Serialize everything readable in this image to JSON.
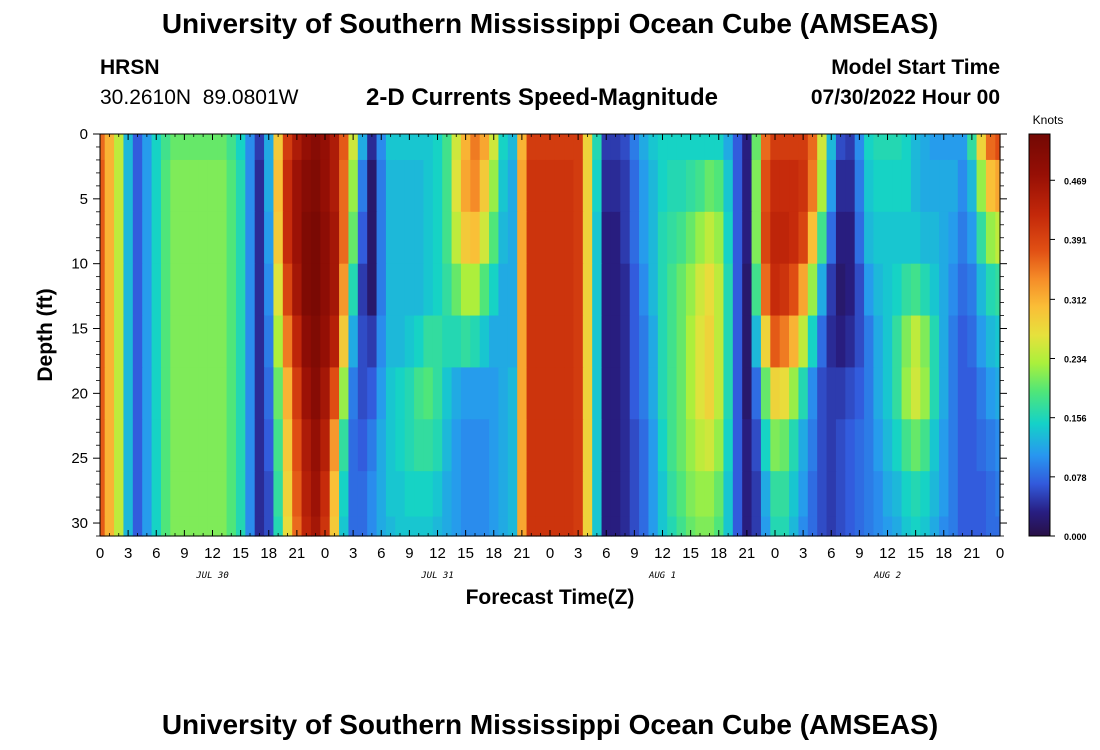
{
  "page": {
    "title": "University of Southern Mississippi Ocean Cube (AMSEAS)",
    "footer_title": "University of Southern Mississippi Ocean Cube (AMSEAS)",
    "station_name": "HRSN",
    "station_coords": "30.2610N  89.0801W",
    "model_start_label": "Model Start Time",
    "model_start_value": "07/30/2022 Hour 00"
  },
  "chart_data": {
    "type": "heatmap",
    "title": "2-D Currents Speed-Magnitude",
    "xlabel": "Forecast Time(Z)",
    "ylabel": "Depth (ft)",
    "x_range_hours": [
      0,
      96
    ],
    "ylim": [
      0,
      31
    ],
    "y_inverted": true,
    "x_tick_step_hours": 3,
    "x_tick_labels": [
      "0",
      "3",
      "6",
      "9",
      "12",
      "15",
      "18",
      "21",
      "0",
      "3",
      "6",
      "9",
      "12",
      "15",
      "18",
      "21",
      "0",
      "3",
      "6",
      "9",
      "12",
      "15",
      "18",
      "21",
      "0",
      "3",
      "6",
      "9",
      "12",
      "15",
      "18",
      "21",
      "0"
    ],
    "date_labels": [
      {
        "label": "JUL 30",
        "hour": 12
      },
      {
        "label": "JUL 31",
        "hour": 36
      },
      {
        "label": "AUG 1",
        "hour": 60
      },
      {
        "label": "AUG 2",
        "hour": 84
      }
    ],
    "y_ticks": [
      0,
      5,
      10,
      15,
      20,
      25,
      30
    ],
    "colorbar": {
      "unit": "Knots",
      "min": 0.0,
      "max": 0.53,
      "ticks": [
        "0.000",
        "0.078",
        "0.156",
        "0.234",
        "0.312",
        "0.391",
        "0.469"
      ],
      "tick_values": [
        0.0,
        0.078,
        0.156,
        0.234,
        0.312,
        0.391,
        0.469
      ]
    },
    "depth_levels_ft": [
      0,
      4,
      8,
      12,
      16,
      20,
      24,
      28,
      31
    ],
    "time_hours": [
      0,
      1,
      2,
      3,
      4,
      5,
      6,
      7,
      8,
      9,
      10,
      11,
      12,
      13,
      14,
      15,
      16,
      17,
      18,
      19,
      20,
      21,
      22,
      23,
      24,
      25,
      26,
      27,
      28,
      29,
      30,
      31,
      32,
      33,
      34,
      35,
      36,
      37,
      38,
      39,
      40,
      41,
      42,
      43,
      44,
      45,
      46,
      47,
      48,
      49,
      50,
      51,
      52,
      53,
      54,
      55,
      56,
      57,
      58,
      59,
      60,
      61,
      62,
      63,
      64,
      65,
      66,
      67,
      68,
      69,
      70,
      71,
      72,
      73,
      74,
      75,
      76,
      77,
      78,
      79,
      80,
      81,
      82,
      83,
      84,
      85,
      86,
      87,
      88,
      89,
      90,
      91,
      92,
      93,
      94,
      95,
      96
    ],
    "speed_knots_by_depth": [
      [
        0.36,
        0.31,
        0.24,
        0.13,
        0.07,
        0.11,
        0.15,
        0.18,
        0.2,
        0.2,
        0.2,
        0.2,
        0.2,
        0.2,
        0.18,
        0.15,
        0.1,
        0.05,
        0.12,
        0.29,
        0.4,
        0.45,
        0.48,
        0.5,
        0.48,
        0.45,
        0.37,
        0.25,
        0.12,
        0.04,
        0.1,
        0.14,
        0.14,
        0.14,
        0.14,
        0.14,
        0.15,
        0.18,
        0.25,
        0.31,
        0.35,
        0.32,
        0.25,
        0.15,
        0.13,
        0.31,
        0.4,
        0.4,
        0.4,
        0.4,
        0.4,
        0.4,
        0.28,
        0.16,
        0.05,
        0.05,
        0.06,
        0.09,
        0.12,
        0.14,
        0.15,
        0.15,
        0.15,
        0.15,
        0.15,
        0.15,
        0.15,
        0.12,
        0.07,
        0.03,
        0.2,
        0.36,
        0.4,
        0.4,
        0.4,
        0.4,
        0.36,
        0.25,
        0.13,
        0.06,
        0.05,
        0.1,
        0.15,
        0.16,
        0.16,
        0.16,
        0.15,
        0.13,
        0.12,
        0.11,
        0.11,
        0.11,
        0.11,
        0.17,
        0.28,
        0.36,
        0.38
      ],
      [
        0.37,
        0.31,
        0.24,
        0.13,
        0.07,
        0.11,
        0.15,
        0.19,
        0.21,
        0.21,
        0.21,
        0.21,
        0.21,
        0.21,
        0.19,
        0.16,
        0.1,
        0.04,
        0.12,
        0.3,
        0.42,
        0.47,
        0.5,
        0.51,
        0.48,
        0.45,
        0.36,
        0.22,
        0.09,
        0.02,
        0.09,
        0.13,
        0.13,
        0.13,
        0.13,
        0.14,
        0.15,
        0.18,
        0.26,
        0.32,
        0.34,
        0.29,
        0.22,
        0.14,
        0.12,
        0.32,
        0.41,
        0.41,
        0.41,
        0.41,
        0.41,
        0.4,
        0.28,
        0.15,
        0.04,
        0.04,
        0.05,
        0.08,
        0.11,
        0.13,
        0.15,
        0.16,
        0.16,
        0.17,
        0.18,
        0.2,
        0.19,
        0.14,
        0.07,
        0.03,
        0.21,
        0.38,
        0.42,
        0.42,
        0.42,
        0.41,
        0.35,
        0.23,
        0.11,
        0.04,
        0.04,
        0.09,
        0.14,
        0.15,
        0.15,
        0.15,
        0.15,
        0.13,
        0.12,
        0.12,
        0.12,
        0.12,
        0.1,
        0.13,
        0.22,
        0.3,
        0.32
      ],
      [
        0.37,
        0.31,
        0.24,
        0.13,
        0.07,
        0.11,
        0.15,
        0.19,
        0.21,
        0.21,
        0.21,
        0.21,
        0.21,
        0.21,
        0.19,
        0.16,
        0.1,
        0.04,
        0.11,
        0.29,
        0.42,
        0.47,
        0.51,
        0.52,
        0.49,
        0.46,
        0.36,
        0.2,
        0.07,
        0.02,
        0.09,
        0.13,
        0.13,
        0.13,
        0.13,
        0.14,
        0.15,
        0.18,
        0.24,
        0.29,
        0.3,
        0.25,
        0.19,
        0.13,
        0.12,
        0.32,
        0.41,
        0.41,
        0.41,
        0.41,
        0.41,
        0.4,
        0.28,
        0.14,
        0.03,
        0.03,
        0.05,
        0.08,
        0.11,
        0.13,
        0.16,
        0.17,
        0.18,
        0.2,
        0.22,
        0.24,
        0.22,
        0.15,
        0.07,
        0.03,
        0.21,
        0.39,
        0.43,
        0.43,
        0.42,
        0.39,
        0.3,
        0.18,
        0.08,
        0.03,
        0.03,
        0.08,
        0.13,
        0.14,
        0.14,
        0.14,
        0.14,
        0.14,
        0.13,
        0.13,
        0.12,
        0.11,
        0.09,
        0.11,
        0.17,
        0.22,
        0.24
      ],
      [
        0.37,
        0.31,
        0.24,
        0.13,
        0.07,
        0.11,
        0.15,
        0.19,
        0.21,
        0.21,
        0.21,
        0.21,
        0.21,
        0.21,
        0.19,
        0.16,
        0.1,
        0.04,
        0.1,
        0.26,
        0.39,
        0.46,
        0.51,
        0.52,
        0.49,
        0.46,
        0.33,
        0.16,
        0.05,
        0.02,
        0.09,
        0.13,
        0.13,
        0.13,
        0.13,
        0.14,
        0.15,
        0.17,
        0.2,
        0.23,
        0.23,
        0.19,
        0.15,
        0.12,
        0.12,
        0.32,
        0.41,
        0.41,
        0.41,
        0.41,
        0.41,
        0.4,
        0.28,
        0.14,
        0.03,
        0.03,
        0.04,
        0.07,
        0.1,
        0.13,
        0.16,
        0.18,
        0.2,
        0.22,
        0.25,
        0.27,
        0.24,
        0.16,
        0.07,
        0.02,
        0.18,
        0.36,
        0.42,
        0.41,
        0.38,
        0.32,
        0.22,
        0.12,
        0.05,
        0.02,
        0.03,
        0.06,
        0.11,
        0.13,
        0.14,
        0.15,
        0.17,
        0.18,
        0.16,
        0.14,
        0.12,
        0.1,
        0.08,
        0.09,
        0.13,
        0.16,
        0.17
      ],
      [
        0.37,
        0.31,
        0.24,
        0.13,
        0.07,
        0.11,
        0.15,
        0.19,
        0.21,
        0.21,
        0.21,
        0.21,
        0.21,
        0.21,
        0.19,
        0.16,
        0.1,
        0.04,
        0.09,
        0.23,
        0.35,
        0.43,
        0.49,
        0.51,
        0.48,
        0.44,
        0.29,
        0.12,
        0.06,
        0.05,
        0.1,
        0.13,
        0.13,
        0.14,
        0.15,
        0.17,
        0.17,
        0.16,
        0.16,
        0.17,
        0.16,
        0.14,
        0.12,
        0.12,
        0.12,
        0.32,
        0.41,
        0.41,
        0.41,
        0.41,
        0.41,
        0.4,
        0.28,
        0.14,
        0.03,
        0.03,
        0.04,
        0.07,
        0.09,
        0.12,
        0.16,
        0.18,
        0.2,
        0.23,
        0.26,
        0.28,
        0.24,
        0.16,
        0.07,
        0.02,
        0.13,
        0.28,
        0.37,
        0.35,
        0.31,
        0.24,
        0.15,
        0.08,
        0.04,
        0.03,
        0.04,
        0.06,
        0.09,
        0.12,
        0.14,
        0.17,
        0.21,
        0.24,
        0.21,
        0.16,
        0.12,
        0.09,
        0.07,
        0.08,
        0.11,
        0.13,
        0.14
      ],
      [
        0.37,
        0.31,
        0.24,
        0.13,
        0.07,
        0.11,
        0.15,
        0.19,
        0.21,
        0.21,
        0.21,
        0.21,
        0.21,
        0.21,
        0.19,
        0.16,
        0.1,
        0.04,
        0.08,
        0.2,
        0.31,
        0.4,
        0.47,
        0.5,
        0.46,
        0.38,
        0.22,
        0.09,
        0.06,
        0.07,
        0.11,
        0.14,
        0.15,
        0.16,
        0.18,
        0.19,
        0.17,
        0.14,
        0.12,
        0.11,
        0.11,
        0.11,
        0.11,
        0.12,
        0.13,
        0.32,
        0.41,
        0.41,
        0.41,
        0.41,
        0.41,
        0.4,
        0.28,
        0.14,
        0.03,
        0.03,
        0.04,
        0.07,
        0.09,
        0.12,
        0.16,
        0.18,
        0.2,
        0.23,
        0.26,
        0.28,
        0.24,
        0.16,
        0.07,
        0.02,
        0.08,
        0.2,
        0.28,
        0.27,
        0.22,
        0.16,
        0.1,
        0.06,
        0.05,
        0.05,
        0.06,
        0.07,
        0.09,
        0.12,
        0.14,
        0.17,
        0.22,
        0.25,
        0.22,
        0.16,
        0.12,
        0.09,
        0.07,
        0.07,
        0.09,
        0.11,
        0.12
      ],
      [
        0.37,
        0.31,
        0.24,
        0.13,
        0.07,
        0.11,
        0.15,
        0.19,
        0.21,
        0.21,
        0.21,
        0.21,
        0.21,
        0.21,
        0.19,
        0.16,
        0.1,
        0.04,
        0.07,
        0.18,
        0.29,
        0.38,
        0.45,
        0.48,
        0.44,
        0.33,
        0.17,
        0.08,
        0.07,
        0.09,
        0.12,
        0.14,
        0.15,
        0.16,
        0.17,
        0.17,
        0.16,
        0.13,
        0.11,
        0.1,
        0.1,
        0.1,
        0.11,
        0.12,
        0.13,
        0.32,
        0.41,
        0.41,
        0.41,
        0.41,
        0.41,
        0.4,
        0.28,
        0.14,
        0.03,
        0.03,
        0.04,
        0.06,
        0.08,
        0.11,
        0.15,
        0.18,
        0.2,
        0.22,
        0.24,
        0.25,
        0.22,
        0.15,
        0.07,
        0.03,
        0.06,
        0.15,
        0.21,
        0.2,
        0.16,
        0.12,
        0.09,
        0.06,
        0.05,
        0.06,
        0.07,
        0.08,
        0.09,
        0.11,
        0.13,
        0.15,
        0.18,
        0.2,
        0.18,
        0.14,
        0.11,
        0.09,
        0.07,
        0.07,
        0.08,
        0.09,
        0.1
      ],
      [
        0.37,
        0.31,
        0.24,
        0.13,
        0.07,
        0.11,
        0.15,
        0.19,
        0.21,
        0.21,
        0.21,
        0.21,
        0.21,
        0.21,
        0.19,
        0.16,
        0.1,
        0.04,
        0.06,
        0.17,
        0.28,
        0.37,
        0.44,
        0.47,
        0.42,
        0.3,
        0.15,
        0.08,
        0.08,
        0.1,
        0.12,
        0.14,
        0.14,
        0.15,
        0.15,
        0.15,
        0.14,
        0.12,
        0.11,
        0.1,
        0.1,
        0.1,
        0.11,
        0.12,
        0.13,
        0.32,
        0.41,
        0.41,
        0.41,
        0.41,
        0.41,
        0.4,
        0.28,
        0.14,
        0.03,
        0.03,
        0.04,
        0.06,
        0.08,
        0.11,
        0.14,
        0.17,
        0.19,
        0.21,
        0.22,
        0.22,
        0.2,
        0.14,
        0.07,
        0.03,
        0.05,
        0.12,
        0.17,
        0.17,
        0.14,
        0.11,
        0.08,
        0.06,
        0.05,
        0.06,
        0.07,
        0.08,
        0.09,
        0.1,
        0.12,
        0.13,
        0.15,
        0.16,
        0.15,
        0.13,
        0.11,
        0.09,
        0.07,
        0.07,
        0.07,
        0.08,
        0.09
      ],
      [
        0.37,
        0.31,
        0.24,
        0.13,
        0.07,
        0.11,
        0.15,
        0.19,
        0.21,
        0.21,
        0.21,
        0.21,
        0.21,
        0.21,
        0.19,
        0.16,
        0.1,
        0.04,
        0.06,
        0.16,
        0.27,
        0.36,
        0.43,
        0.46,
        0.41,
        0.29,
        0.14,
        0.08,
        0.08,
        0.1,
        0.12,
        0.13,
        0.14,
        0.14,
        0.14,
        0.14,
        0.13,
        0.12,
        0.11,
        0.1,
        0.1,
        0.1,
        0.11,
        0.12,
        0.13,
        0.32,
        0.41,
        0.41,
        0.41,
        0.41,
        0.41,
        0.4,
        0.28,
        0.14,
        0.03,
        0.03,
        0.04,
        0.06,
        0.08,
        0.11,
        0.14,
        0.16,
        0.18,
        0.2,
        0.21,
        0.21,
        0.19,
        0.14,
        0.07,
        0.03,
        0.05,
        0.11,
        0.16,
        0.16,
        0.13,
        0.1,
        0.08,
        0.06,
        0.05,
        0.06,
        0.07,
        0.08,
        0.09,
        0.1,
        0.11,
        0.12,
        0.14,
        0.15,
        0.14,
        0.12,
        0.1,
        0.09,
        0.07,
        0.07,
        0.07,
        0.08,
        0.08
      ]
    ]
  }
}
